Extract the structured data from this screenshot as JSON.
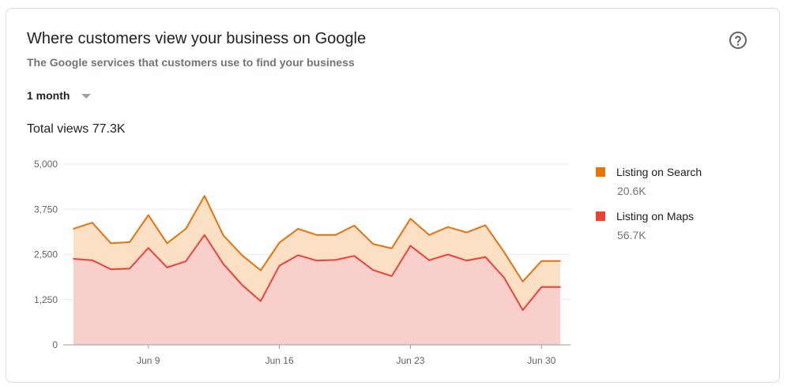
{
  "header": {
    "title": "Where customers view your business on Google",
    "subtitle": "The Google services that customers use to find your business",
    "help_icon": "help-circle-icon"
  },
  "period": {
    "selected": "1 month"
  },
  "total": {
    "label": "Total views",
    "value": "77.3K"
  },
  "legend": [
    {
      "name": "Listing on Search",
      "value": "20.6K",
      "color": "#e8710a"
    },
    {
      "name": "Listing on Maps",
      "value": "56.7K",
      "color": "#ea4335"
    }
  ],
  "chart_data": {
    "type": "area",
    "stacked": true,
    "title": "",
    "xlabel": "",
    "ylabel": "",
    "ylim": [
      0,
      5000
    ],
    "yticks": [
      0,
      1250,
      2500,
      3750,
      5000
    ],
    "ytick_labels": [
      "0",
      "1,250",
      "2,500",
      "3,750",
      "5,000"
    ],
    "x": [
      "Jun 5",
      "Jun 6",
      "Jun 7",
      "Jun 8",
      "Jun 9",
      "Jun 10",
      "Jun 11",
      "Jun 12",
      "Jun 13",
      "Jun 14",
      "Jun 15",
      "Jun 16",
      "Jun 17",
      "Jun 18",
      "Jun 19",
      "Jun 20",
      "Jun 21",
      "Jun 22",
      "Jun 23",
      "Jun 24",
      "Jun 25",
      "Jun 26",
      "Jun 27",
      "Jun 28",
      "Jun 29",
      "Jun 30",
      "Jul 1"
    ],
    "xticks": [
      "Jun 9",
      "Jun 16",
      "Jun 23",
      "Jun 30"
    ],
    "grid": true,
    "legend_position": "right",
    "series": [
      {
        "name": "Listing on Maps",
        "color": "#ea4335",
        "fill": "#f9cfcc",
        "values": [
          2380,
          2340,
          2090,
          2110,
          2680,
          2140,
          2310,
          3040,
          2240,
          1660,
          1210,
          2190,
          2480,
          2330,
          2350,
          2460,
          2070,
          1900,
          2740,
          2340,
          2500,
          2330,
          2430,
          1860,
          960,
          1600,
          1600
        ]
      },
      {
        "name": "Listing on Search",
        "color": "#e8710a",
        "fill": "#fbe0c6",
        "values": [
          830,
          1040,
          720,
          730,
          910,
          670,
          900,
          1080,
          790,
          820,
          850,
          640,
          730,
          710,
          690,
          840,
          720,
          770,
          750,
          700,
          760,
          780,
          880,
          710,
          790,
          720,
          720
        ]
      }
    ]
  }
}
